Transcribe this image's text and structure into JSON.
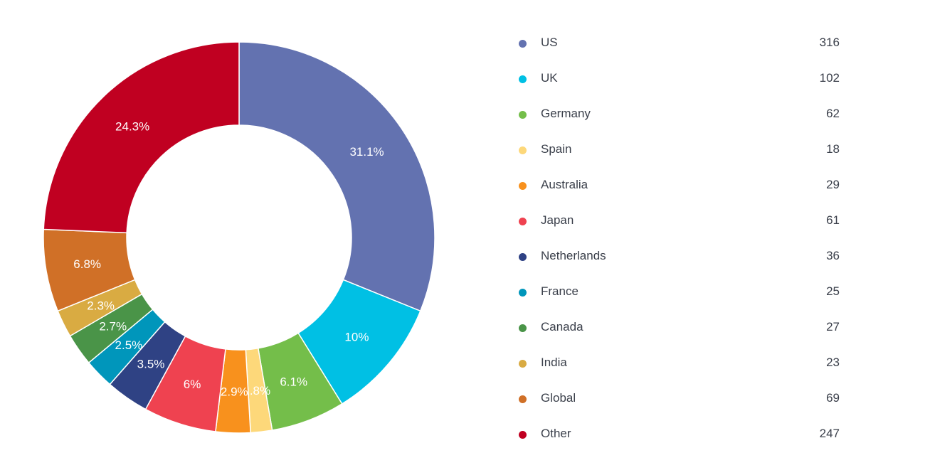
{
  "chart_data": {
    "type": "pie",
    "variant": "donut",
    "legend_position": "right",
    "categories": [
      "US",
      "UK",
      "Germany",
      "Spain",
      "Australia",
      "Japan",
      "Netherlands",
      "France",
      "Canada",
      "India",
      "Global",
      "Other"
    ],
    "values": [
      316,
      102,
      62,
      18,
      29,
      61,
      36,
      25,
      27,
      23,
      69,
      247
    ],
    "percent_labels": [
      "31.1%",
      "10%",
      "6.1%",
      "1.8%",
      "2.9%",
      "6%",
      "3.5%",
      "2.5%",
      "2.7%",
      "2.3%",
      "6.8%",
      "24.3%"
    ],
    "colors": [
      "#6372b0",
      "#00c0e4",
      "#74be4a",
      "#fdd87a",
      "#f8911d",
      "#ef4250",
      "#2f4284",
      "#0096bb",
      "#4a9448",
      "#d9ab42",
      "#d07027",
      "#c00021"
    ]
  }
}
